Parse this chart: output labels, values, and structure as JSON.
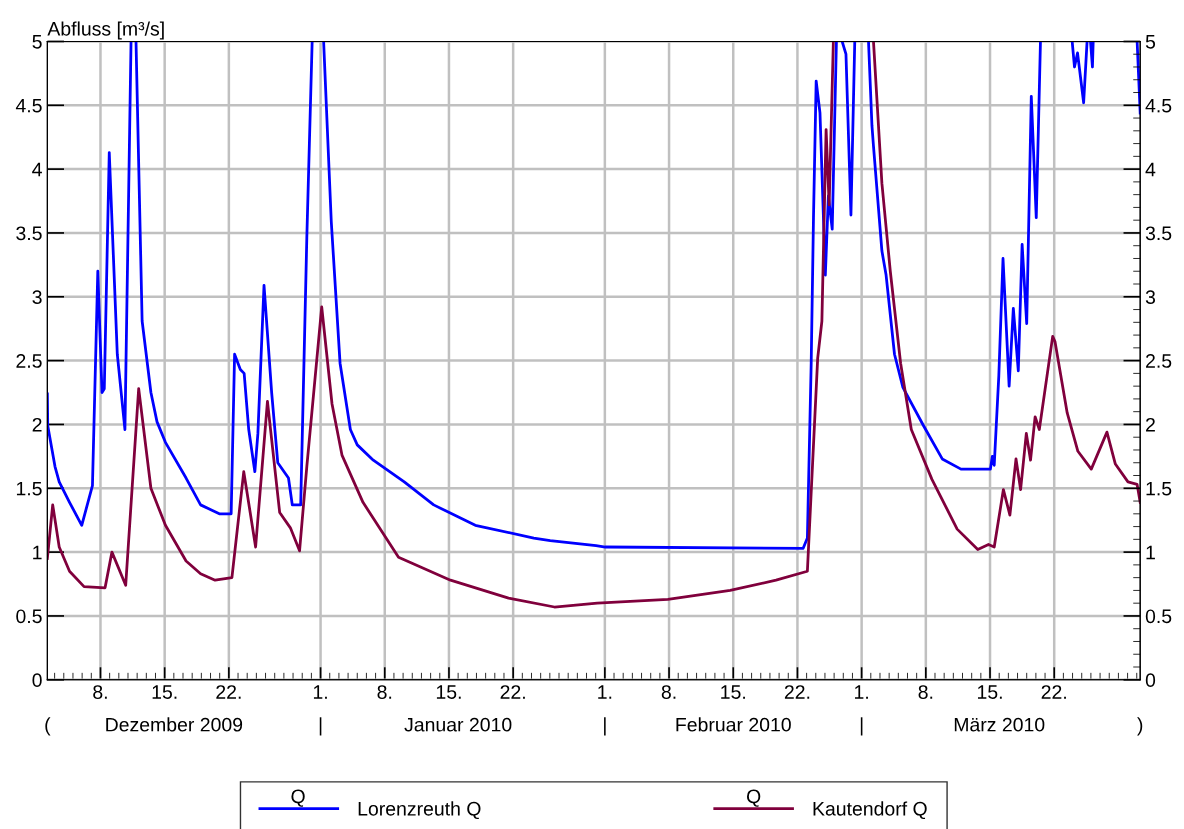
{
  "chart_data": {
    "type": "line",
    "ylabel": "Abfluss [m³/s]",
    "xlim": [
      "2009-12-02T05:00",
      "2010-03-31T09:00"
    ],
    "xticks": [
      {
        "value": "2009-12-08",
        "label": "8."
      },
      {
        "value": "2009-12-15",
        "label": "15."
      },
      {
        "value": "2009-12-22",
        "label": "22."
      },
      {
        "value": "2010-01-01",
        "label": "1."
      },
      {
        "value": "2010-01-08",
        "label": "8."
      },
      {
        "value": "2010-01-15",
        "label": "15."
      },
      {
        "value": "2010-01-22",
        "label": "22."
      },
      {
        "value": "2010-02-01",
        "label": "1."
      },
      {
        "value": "2010-02-08",
        "label": "8."
      },
      {
        "value": "2010-02-15",
        "label": "15."
      },
      {
        "value": "2010-02-22",
        "label": "22."
      },
      {
        "value": "2010-03-01",
        "label": "1."
      },
      {
        "value": "2010-03-08",
        "label": "8."
      },
      {
        "value": "2010-03-15",
        "label": "15."
      },
      {
        "value": "2010-03-22",
        "label": "22."
      }
    ],
    "x2lim": [
      "2009-12-02T05:00",
      "2010-03-31T09:00"
    ],
    "x2ticks": [
      {
        "value": "2009-12-02T05:00",
        "label": "("
      },
      {
        "value": "2009-12-16",
        "label": "Dezember 2009"
      },
      {
        "value": "2010-01-01",
        "label": "|"
      },
      {
        "value": "2010-01-16",
        "label": "Januar 2010"
      },
      {
        "value": "2010-02-01",
        "label": "|"
      },
      {
        "value": "2010-02-15",
        "label": "Februar 2010"
      },
      {
        "value": "2010-03-01",
        "label": "|"
      },
      {
        "value": "2010-03-16",
        "label": "März 2010"
      },
      {
        "value": "2010-03-31T09:00",
        "label": ")"
      }
    ],
    "ylim": [
      0,
      5
    ],
    "yticks": [
      0,
      0.5,
      1,
      1.5,
      2,
      2.5,
      3,
      3.5,
      4,
      4.5,
      5
    ],
    "y2lim": [
      0,
      5
    ],
    "y2ticks": [
      0,
      0.5,
      1,
      1.5,
      2,
      2.5,
      3,
      3.5,
      4,
      4.5,
      5
    ],
    "grid": true,
    "legend": "bottom",
    "annotations": [
      "Q",
      "Q"
    ],
    "series": [
      {
        "name": "Lorenzreuth Q",
        "color": "#0000ff",
        "x": [
          "2009-12-02T05:00",
          "2009-12-02T06:00",
          "2009-12-03T01:00",
          "2009-12-03T12:00",
          "2009-12-04T15:00",
          "2009-12-05T23:00",
          "2009-12-07T03:00",
          "2009-12-07T17:00",
          "2009-12-08T04:00",
          "2009-12-08T10:00",
          "2009-12-08T23:00",
          "2009-12-09T20:00",
          "2009-12-10T16:00",
          "2009-12-11T08:00",
          "2009-12-11T14:00",
          "2009-12-11T21:00",
          "2009-12-12T13:00",
          "2009-12-13T12:00",
          "2009-12-14T04:00",
          "2009-12-15T02:00",
          "2009-12-17T08:00",
          "2009-12-18T22:00",
          "2009-12-20T23:00",
          "2009-12-22T06:00",
          "2009-12-22T15:00",
          "2009-12-23T06:00",
          "2009-12-23T16:00",
          "2009-12-24T04:00",
          "2009-12-24T20:00",
          "2009-12-25T04:00",
          "2009-12-25T20:00",
          "2009-12-26T16:00",
          "2009-12-27T08:00",
          "2009-12-28T12:00",
          "2009-12-28T22:00",
          "2009-12-29T20:00",
          "2009-12-30T12:00",
          "2009-12-31T02:00",
          "2009-12-31T12:00",
          "2010-01-01T08:00",
          "2010-01-02T04:00",
          "2010-01-03T03:00",
          "2010-01-04T06:00",
          "2010-01-05T00:00",
          "2010-01-06T18:00",
          "2010-01-10T03:00",
          "2010-01-13T08:00",
          "2010-01-17T21:00",
          "2010-01-24T06:00",
          "2010-01-26T01:00",
          "2010-01-31T01:00",
          "2010-02-01T01:00",
          "2010-02-22T15:00",
          "2010-02-23T02:00",
          "2010-02-23T12:00",
          "2010-02-23T18:00",
          "2010-02-24T01:00",
          "2010-02-24T11:00",
          "2010-02-25T01:00",
          "2010-02-25T09:00",
          "2010-02-25T19:00",
          "2010-02-26T06:00",
          "2010-02-26T12:00",
          "2010-02-26T21:00",
          "2010-02-27T07:00",
          "2010-02-27T20:00",
          "2010-02-28T06:00",
          "2010-03-01T00:00",
          "2010-03-01T18:00",
          "2010-03-02T03:00",
          "2010-03-02T07:00",
          "2010-03-03T05:00",
          "2010-03-03T16:00",
          "2010-03-04T14:00",
          "2010-03-05T12:00",
          "2010-03-07T18:00",
          "2010-03-09T19:00",
          "2010-03-11T20:00",
          "2010-03-15T01:00",
          "2010-03-15T06:00",
          "2010-03-15T11:00",
          "2010-03-15T23:00",
          "2010-03-16T10:00",
          "2010-03-17T02:00",
          "2010-03-17T13:00",
          "2010-03-18T02:00",
          "2010-03-18T12:00",
          "2010-03-19T00:00",
          "2010-03-19T12:00",
          "2010-03-20T01:00",
          "2010-03-20T12:00",
          "2010-03-22T00:00",
          "2010-03-23T23:00",
          "2010-03-24T05:00",
          "2010-03-24T13:00",
          "2010-03-25T05:00",
          "2010-03-25T14:00",
          "2010-03-25T17:00",
          "2010-03-25T23:00",
          "2010-03-26T04:00",
          "2010-03-26T06:00",
          "2010-03-28T00:00",
          "2010-03-31T01:00",
          "2010-03-31T09:00"
        ],
        "values": [
          2.24,
          1.99,
          1.67,
          1.55,
          1.39,
          1.21,
          1.52,
          3.2,
          2.25,
          2.28,
          4.13,
          2.55,
          1.96,
          5,
          null,
          5,
          2.81,
          2.25,
          2.02,
          1.86,
          1.58,
          1.37,
          1.3,
          1.3,
          2.55,
          2.43,
          2.4,
          1.96,
          1.63,
          1.93,
          3.09,
          2.25,
          1.7,
          1.58,
          1.37,
          1.37,
          3.46,
          5,
          null,
          5,
          3.59,
          2.48,
          1.96,
          1.84,
          1.72,
          1.55,
          1.37,
          1.21,
          1.11,
          1.09,
          1.05,
          1.04,
          1.03,
          1.11,
          2.48,
          3.62,
          4.69,
          4.44,
          3.17,
          3.79,
          3.53,
          5,
          null,
          5,
          4.9,
          3.64,
          5,
          null,
          5,
          4.34,
          4.18,
          3.36,
          3.17,
          2.55,
          2.29,
          1.99,
          1.73,
          1.65,
          1.65,
          1.75,
          1.68,
          2.38,
          3.3,
          2.3,
          2.91,
          2.42,
          3.41,
          2.79,
          4.57,
          3.62,
          5,
          null,
          5,
          4.8,
          4.91,
          4.52,
          5,
          null,
          5,
          4.8,
          5,
          null,
          5,
          4.44
        ]
      },
      {
        "name": "Kautendorf Q",
        "color": "#80003c",
        "x": [
          "2009-12-02T05:00",
          "2009-12-02T19:00",
          "2009-12-03T12:00",
          "2009-12-04T15:00",
          "2009-12-06T05:00",
          "2009-12-08T12:00",
          "2009-12-09T06:00",
          "2009-12-10T18:00",
          "2009-12-12T04:00",
          "2009-12-13T12:00",
          "2009-12-15T02:00",
          "2009-12-17T08:00",
          "2009-12-18T22:00",
          "2009-12-20T12:00",
          "2009-12-22T08:00",
          "2009-12-23T15:00",
          "2009-12-24T22:00",
          "2009-12-26T05:00",
          "2009-12-27T13:00",
          "2009-12-28T17:00",
          "2009-12-29T17:00",
          "2009-12-30T12:00",
          "2010-01-01T03:00",
          "2010-01-02T06:00",
          "2010-01-03T08:00",
          "2010-01-05T15:00",
          "2010-01-09T12:00",
          "2010-01-15T04:00",
          "2010-01-21T12:00",
          "2010-01-26T12:00",
          "2010-01-31T04:00",
          "2010-02-07T21:00",
          "2010-02-14T16:00",
          "2010-02-19T16:00",
          "2010-02-23T02:00",
          "2010-02-24T05:00",
          "2010-02-24T16:00",
          "2010-02-25T03:00",
          "2010-02-25T11:00",
          "2010-02-25T22:00",
          "2010-03-01T00:00",
          "2010-03-02T07:00",
          "2010-03-03T05:00",
          "2010-03-04T03:00",
          "2010-03-05T06:00",
          "2010-03-06T10:00",
          "2010-03-08T16:00",
          "2010-03-11T10:00",
          "2010-03-13T16:00",
          "2010-03-14T20:00",
          "2010-03-15T11:00",
          "2010-03-16T11:00",
          "2010-03-17T04:00",
          "2010-03-17T20:00",
          "2010-03-18T08:00",
          "2010-03-18T23:00",
          "2010-03-19T10:00",
          "2010-03-19T22:00",
          "2010-03-20T09:00",
          "2010-03-21T20:00",
          "2010-03-22T02:00",
          "2010-03-23T10:00",
          "2010-03-24T14:00",
          "2010-03-26T01:00",
          "2010-03-27T18:00",
          "2010-03-28T16:00",
          "2010-03-30T01:00",
          "2010-03-31T01:00",
          "2010-03-31T09:00"
        ],
        "values": [
          0.95,
          1.37,
          1.04,
          0.85,
          0.73,
          0.72,
          1.0,
          0.74,
          2.28,
          1.5,
          1.21,
          0.93,
          0.83,
          0.78,
          0.8,
          1.63,
          1.04,
          2.18,
          1.31,
          1.19,
          1.01,
          1.67,
          2.92,
          2.16,
          1.76,
          1.39,
          0.96,
          0.78,
          0.64,
          0.57,
          0.6,
          0.63,
          0.7,
          0.78,
          0.85,
          2.52,
          2.81,
          4.31,
          3.72,
          5,
          null,
          5,
          3.89,
          3.2,
          2.48,
          1.96,
          1.57,
          1.18,
          1.02,
          1.06,
          1.04,
          1.49,
          1.29,
          1.73,
          1.49,
          1.93,
          1.72,
          2.06,
          1.96,
          2.69,
          2.65,
          2.09,
          1.79,
          1.65,
          1.94,
          1.69,
          1.55,
          1.53,
          1.39
        ]
      }
    ]
  }
}
